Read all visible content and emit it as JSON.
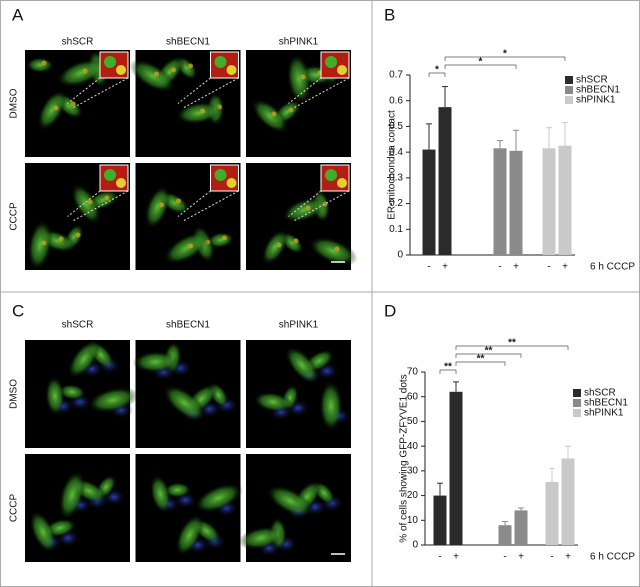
{
  "panel_labels": [
    "A",
    "B",
    "C",
    "D"
  ],
  "image_panels": [
    {
      "columns": [
        "shSCR",
        "shBECN1",
        "shPINK1"
      ],
      "rows": [
        "DMSO",
        "CCCP"
      ]
    },
    {
      "columns": [
        "shSCR",
        "shBECN1",
        "shPINK1"
      ],
      "rows": [
        "DMSO",
        "CCCP"
      ]
    }
  ],
  "chart_data": [
    {
      "type": "bar",
      "y_label": "ER-mitochondria contact",
      "x_label": "6 h CCCP",
      "categories": [
        "-",
        "+"
      ],
      "series": [
        {
          "name": "shSCR",
          "color": "#2b2b2b",
          "values": [
            0.41,
            0.575
          ],
          "errors": [
            0.1,
            0.08
          ]
        },
        {
          "name": "shBECN1",
          "color": "#8a8a8a",
          "values": [
            0.415,
            0.405
          ],
          "errors": [
            0.03,
            0.08
          ]
        },
        {
          "name": "shPINK1",
          "color": "#c9c9c9",
          "values": [
            0.415,
            0.425
          ],
          "errors": [
            0.08,
            0.09
          ]
        }
      ],
      "ylim": [
        0,
        0.7
      ],
      "yticks": [
        0,
        0.1,
        0.2,
        0.3,
        0.4,
        0.5,
        0.6,
        0.7
      ],
      "significance": [
        {
          "label": "*",
          "between": [
            [
              0,
              0
            ],
            [
              0,
              1
            ]
          ]
        },
        {
          "label": "*",
          "between": [
            [
              0,
              1
            ],
            [
              1,
              1
            ]
          ]
        },
        {
          "label": "*",
          "between": [
            [
              0,
              1
            ],
            [
              2,
              1
            ]
          ]
        }
      ]
    },
    {
      "type": "bar",
      "y_label": "% of cells showing GFP-ZFYVE1 dots",
      "x_label": "6 h CCCP",
      "categories": [
        "-",
        "+"
      ],
      "series": [
        {
          "name": "shSCR",
          "color": "#2b2b2b",
          "values": [
            20,
            62
          ],
          "errors": [
            5,
            4
          ]
        },
        {
          "name": "shBECN1",
          "color": "#8a8a8a",
          "values": [
            8,
            14
          ],
          "errors": [
            1.5,
            1
          ]
        },
        {
          "name": "shPINK1",
          "color": "#c9c9c9",
          "values": [
            25.5,
            35
          ],
          "errors": [
            5.5,
            5
          ]
        }
      ],
      "ylim": [
        0,
        70
      ],
      "yticks": [
        0,
        10,
        20,
        30,
        40,
        50,
        60,
        70
      ],
      "significance": [
        {
          "label": "**",
          "between": [
            [
              0,
              0
            ],
            [
              0,
              1
            ]
          ]
        },
        {
          "label": "**",
          "between": [
            [
              0,
              1
            ],
            [
              1,
              0
            ]
          ]
        },
        {
          "label": "**",
          "between": [
            [
              0,
              1
            ],
            [
              1,
              1
            ]
          ]
        },
        {
          "label": "**",
          "between": [
            [
              0,
              1
            ],
            [
              2,
              1
            ]
          ]
        }
      ]
    }
  ]
}
